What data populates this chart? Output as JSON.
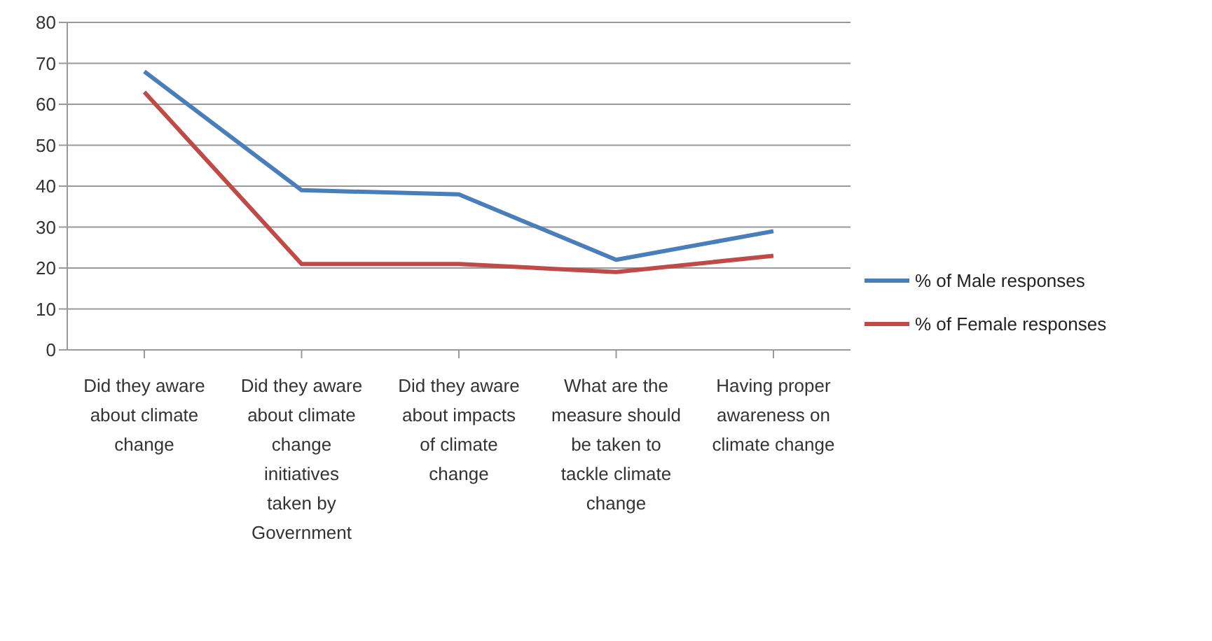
{
  "chart_data": {
    "type": "line",
    "categories": [
      "Did they aware about climate change",
      "Did they aware about climate change initiatives taken by Government",
      "Did they aware about impacts of climate change",
      "What are the measure should be taken to tackle climate change",
      "Having proper awareness on climate change"
    ],
    "series": [
      {
        "name": "% of Male responses",
        "color": "#4a7ebb",
        "values": [
          68,
          39,
          38,
          22,
          29
        ]
      },
      {
        "name": "% of Female responses",
        "color": "#be4b48",
        "values": [
          63,
          21,
          21,
          19,
          23
        ]
      }
    ],
    "ylim": [
      0,
      80
    ],
    "yticks": [
      0,
      10,
      20,
      30,
      40,
      50,
      60,
      70,
      80
    ],
    "grid": "y",
    "legend": "right",
    "marker": "none"
  }
}
